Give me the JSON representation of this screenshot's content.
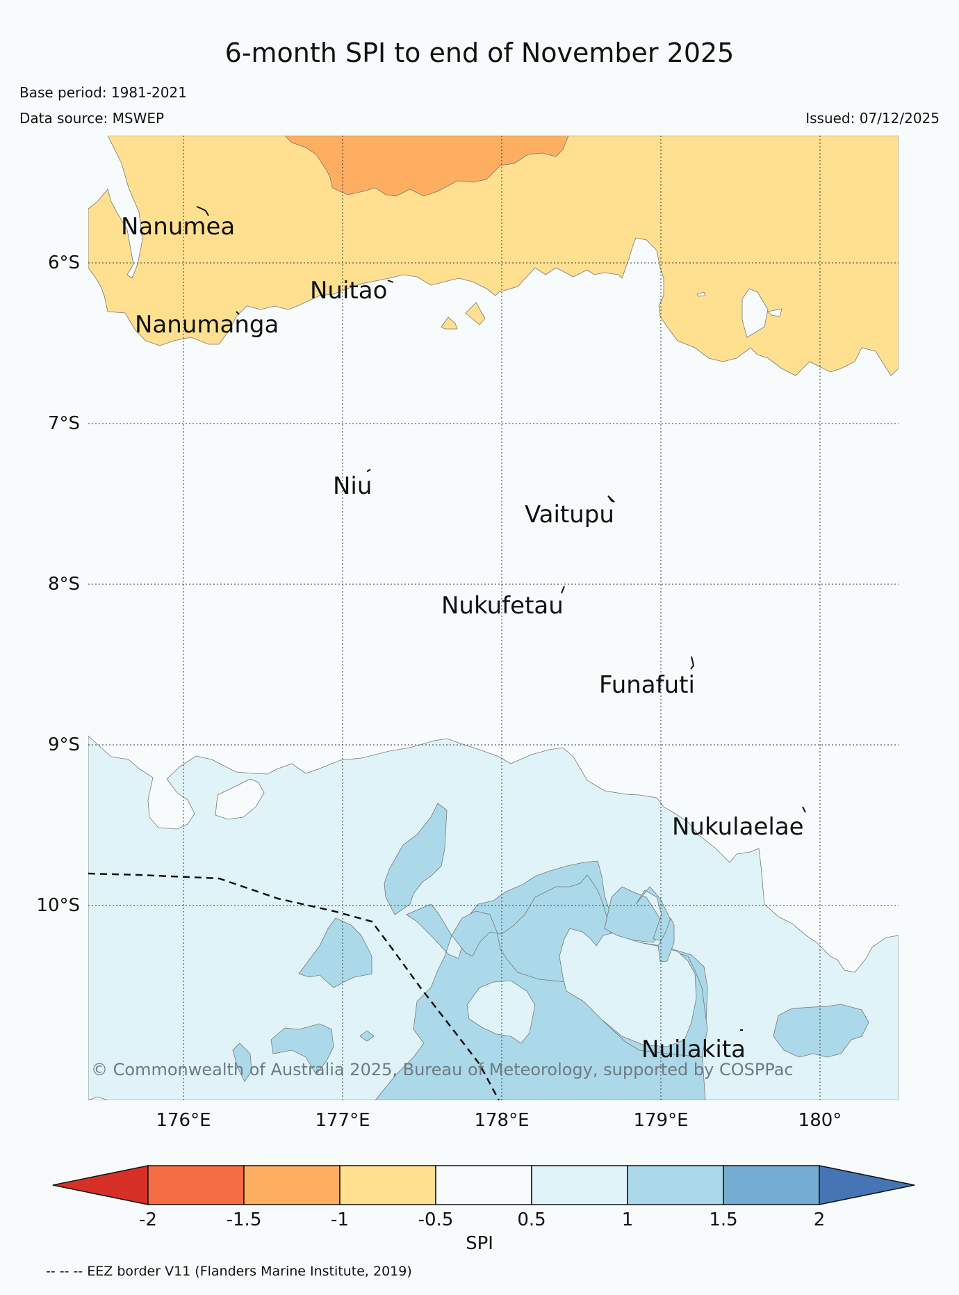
{
  "title": "6-month SPI to end of November 2025",
  "base_period": "Base period: 1981-2021",
  "data_source": "Data source: MSWEP",
  "issued": "Issued: 07/12/2025",
  "copyright": "© Commonwealth of Australia 2025, Bureau of Meteorology, supported by COSPPac",
  "eez_note": "-- -- -- EEZ border V11 (Flanders Marine Institute, 2019)",
  "latitudes": [
    "6°S",
    "7°S",
    "8°S",
    "9°S",
    "10°S"
  ],
  "longitudes": [
    "176°E",
    "177°E",
    "178°E",
    "179°E",
    "180°"
  ],
  "places": [
    "Nanumea",
    "Nuitao",
    "Nanumanga",
    "Niu",
    "Vaitupu",
    "Nukufetau",
    "Funafuti",
    "Nukulaelae",
    "Nuilakita"
  ],
  "colorbar": {
    "label": "SPI",
    "ticks": [
      "-2",
      "-1.5",
      "-1",
      "-0.5",
      "0.5",
      "1",
      "1.5",
      "2"
    ],
    "colors": [
      "#d73027",
      "#f46d43",
      "#fdae61",
      "#fee090",
      "#f7fbfc",
      "#e0f3f8",
      "#abd9e9",
      "#74add1",
      "#4575b4"
    ]
  }
}
